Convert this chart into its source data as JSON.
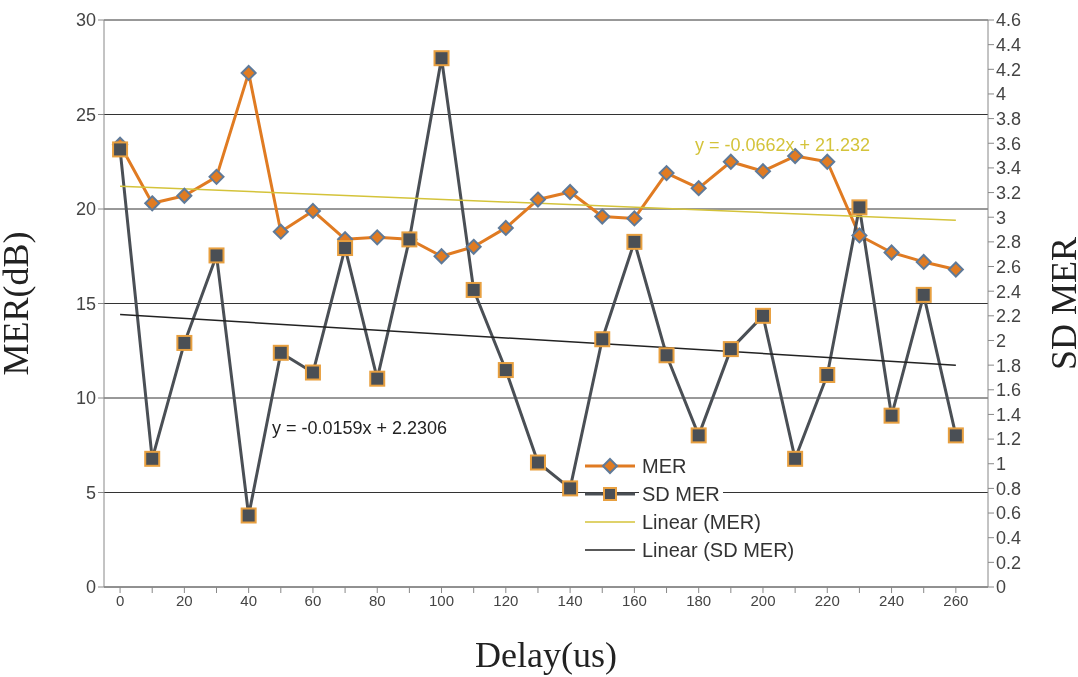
{
  "chart_data": {
    "type": "line",
    "xlabel": "Delay(us)",
    "ylabel": "MER(dB)",
    "y2label": "SD MER",
    "x": [
      0,
      10,
      20,
      30,
      40,
      50,
      60,
      70,
      80,
      90,
      100,
      110,
      120,
      130,
      140,
      150,
      160,
      170,
      180,
      190,
      200,
      210,
      220,
      230,
      240,
      250,
      260
    ],
    "series": [
      {
        "name": "MER",
        "color": "#e07b22",
        "marker": "diamond",
        "values": [
          23.4,
          20.3,
          20.7,
          21.7,
          27.2,
          18.8,
          19.9,
          18.4,
          18.5,
          18.4,
          17.5,
          18.0,
          19.0,
          20.5,
          20.9,
          19.6,
          19.5,
          21.9,
          21.1,
          22.5,
          22.0,
          22.8,
          22.5,
          18.6,
          17.7,
          17.2,
          16.8
        ]
      },
      {
        "name": "SD MER",
        "color": "#4a4f55",
        "marker": "square",
        "axis": "y2",
        "values": [
          3.55,
          1.04,
          1.98,
          2.69,
          0.58,
          1.9,
          1.74,
          2.75,
          1.69,
          2.82,
          4.29,
          2.41,
          1.76,
          1.01,
          0.8,
          2.01,
          2.8,
          1.88,
          1.23,
          1.93,
          2.2,
          1.04,
          1.72,
          3.08,
          1.39,
          2.37,
          1.23
        ]
      },
      {
        "name": "Linear (MER)",
        "type": "line",
        "color": "#d4c33a",
        "marker": "none",
        "values": [
          21.2,
          null,
          null,
          null,
          null,
          null,
          null,
          null,
          null,
          null,
          null,
          null,
          null,
          null,
          null,
          null,
          null,
          null,
          null,
          null,
          null,
          null,
          null,
          null,
          null,
          null,
          19.4
        ]
      },
      {
        "name": "Linear (SD MER)",
        "type": "line",
        "color": "#222222",
        "marker": "none",
        "axis": "y2",
        "values": [
          2.21,
          null,
          null,
          null,
          null,
          null,
          null,
          null,
          null,
          null,
          null,
          null,
          null,
          null,
          null,
          null,
          null,
          null,
          null,
          null,
          null,
          null,
          null,
          null,
          null,
          null,
          1.8
        ]
      }
    ],
    "xlim": [
      -5,
      270
    ],
    "xticks": [
      0,
      {
        "value": 10,
        "label": null
      },
      20,
      {
        "value": 30,
        "label": null
      },
      40,
      {
        "value": 50,
        "label": null
      },
      60,
      {
        "value": 70,
        "label": null
      },
      80,
      {
        "value": 90,
        "label": null
      },
      100,
      {
        "value": 110,
        "label": null
      },
      120,
      {
        "value": 130,
        "label": null
      },
      140,
      {
        "value": 150,
        "label": null
      },
      160,
      {
        "value": 170,
        "label": null
      },
      180,
      {
        "value": 190,
        "label": null
      },
      200,
      {
        "value": 210,
        "label": null
      },
      220,
      {
        "value": 230,
        "label": null
      },
      240,
      {
        "value": 250,
        "label": null
      },
      260
    ],
    "ylim": [
      0,
      30
    ],
    "yticks": [
      0,
      5,
      10,
      15,
      20,
      25,
      30
    ],
    "y2lim": [
      0,
      4.6
    ],
    "y2ticks": [
      0,
      0.2,
      0.4,
      0.6,
      0.8,
      1,
      1.2,
      1.4,
      1.6,
      1.8,
      2,
      2.2,
      2.4,
      2.6,
      2.8,
      3,
      3.2,
      3.4,
      3.6,
      3.8,
      4,
      4.2,
      4.4,
      4.6
    ],
    "annotations": [
      "y = -0.0662x + 21.232",
      "y = -0.0159x + 2.2306"
    ],
    "grid": "y",
    "legend": "bottom right",
    "line_style": "solid"
  }
}
